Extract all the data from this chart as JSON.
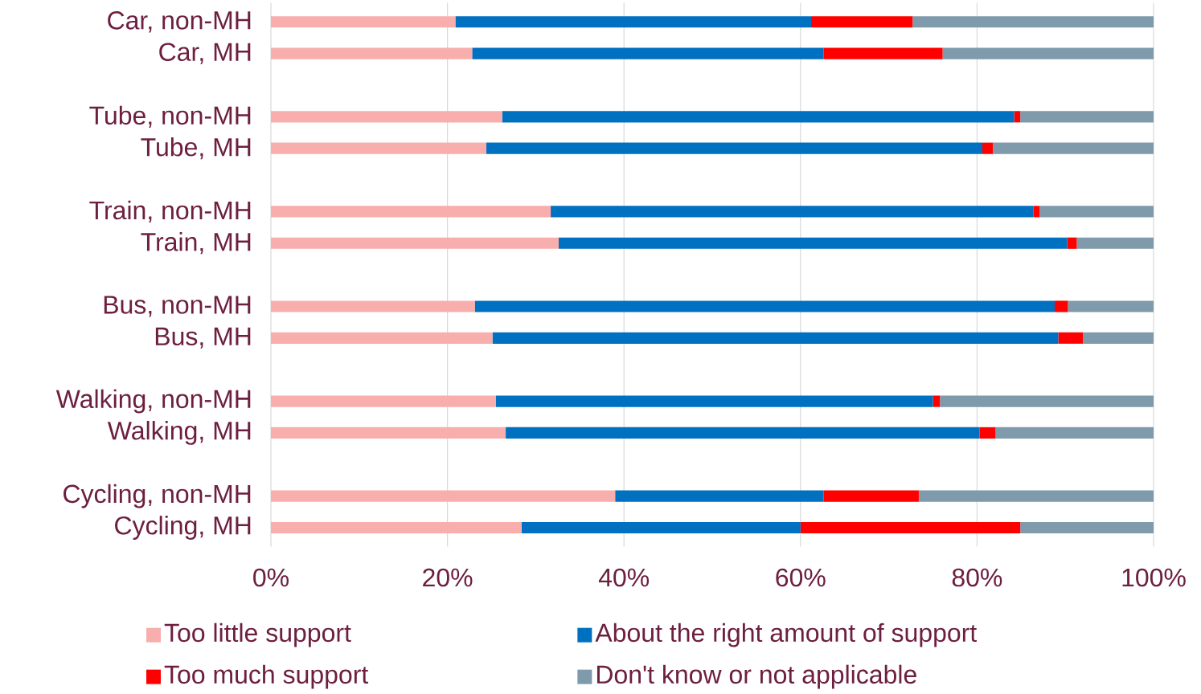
{
  "chart_data": {
    "type": "bar",
    "orientation": "horizontal",
    "stacked": true,
    "categories": [
      "Car, non-MH",
      "Car, MH",
      null,
      "Tube, non-MH",
      "Tube, MH",
      null,
      "Train, non-MH",
      "Train, MH",
      null,
      "Bus, non-MH",
      "Bus, MH",
      null,
      "Walking, non-MH",
      "Walking, MH",
      null,
      "Cycling, non-MH",
      "Cycling, MH"
    ],
    "series": [
      {
        "name": "Too little support",
        "color": "#f8aeac",
        "values": [
          20.9,
          22.8,
          null,
          26.2,
          24.4,
          null,
          31.7,
          32.6,
          null,
          23.1,
          25.1,
          null,
          25.5,
          26.6,
          null,
          39.0,
          28.4
        ]
      },
      {
        "name": "About the right amount of support",
        "color": "#0070c0",
        "values": [
          40.3,
          39.8,
          null,
          58.0,
          56.2,
          null,
          54.7,
          57.6,
          null,
          65.7,
          64.1,
          null,
          49.5,
          53.7,
          null,
          23.6,
          31.6
        ]
      },
      {
        "name": "Too much support",
        "color": "#ff0000",
        "values": [
          11.5,
          13.5,
          null,
          0.7,
          1.2,
          null,
          0.7,
          1.1,
          null,
          1.5,
          2.8,
          null,
          0.8,
          1.8,
          null,
          10.8,
          24.9
        ]
      },
      {
        "name": "Don't know or not applicable",
        "color": "#7f9aab",
        "values": [
          27.3,
          23.9,
          null,
          15.1,
          18.2,
          null,
          12.9,
          8.7,
          null,
          9.7,
          8.0,
          null,
          24.2,
          17.9,
          null,
          26.6,
          15.1
        ]
      }
    ],
    "xlim": [
      0,
      100
    ],
    "xticks": [
      {
        "value": 0,
        "label": "0%"
      },
      {
        "value": 20,
        "label": "20%"
      },
      {
        "value": 40,
        "label": "40%"
      },
      {
        "value": 60,
        "label": "60%"
      },
      {
        "value": 80,
        "label": "80%"
      },
      {
        "value": 100,
        "label": "100%"
      }
    ],
    "grid": "x",
    "legend": "bottom"
  }
}
